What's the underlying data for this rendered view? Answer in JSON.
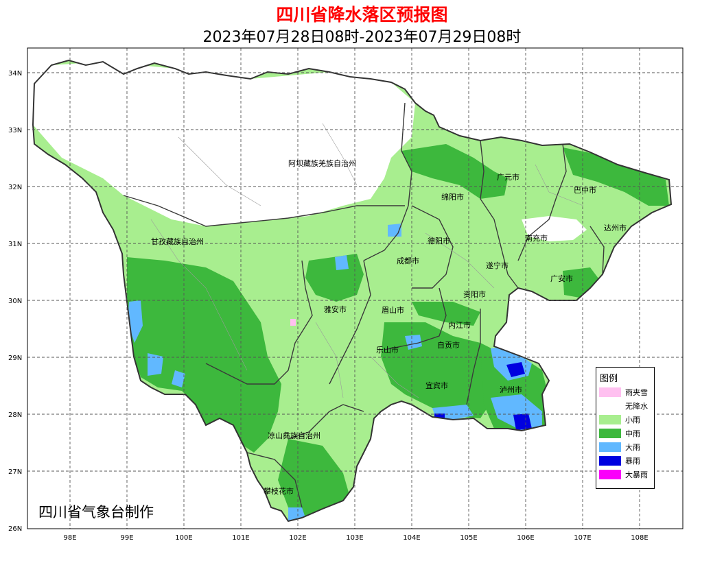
{
  "title": "四川省降水落区预报图",
  "subtitle": "2023年07月28日08时-2023年07月29日08时",
  "credit": "四川省气象台制作",
  "axes": {
    "lat_ticks": [
      "34N",
      "33N",
      "32N",
      "31N",
      "30N",
      "29N",
      "28N",
      "27N",
      "26N"
    ],
    "lon_ticks": [
      "98E",
      "99E",
      "100E",
      "101E",
      "102E",
      "103E",
      "104E",
      "105E",
      "106E",
      "107E",
      "108E"
    ]
  },
  "legend": {
    "title": "图例",
    "items": [
      {
        "label": "雨夹雪",
        "color": "#ffc0f0"
      },
      {
        "label": "无降水",
        "color": "#ffffff"
      },
      {
        "label": "小雨",
        "color": "#a8ee8f"
      },
      {
        "label": "中雨",
        "color": "#3db83d"
      },
      {
        "label": "大雨",
        "color": "#61b8ff"
      },
      {
        "label": "暴雨",
        "color": "#0000e0"
      },
      {
        "label": "大暴雨",
        "color": "#fa00fa"
      }
    ]
  },
  "cities": [
    {
      "name": "阿坝藏族羌族自治州"
    },
    {
      "name": "甘孜藏族自治州"
    },
    {
      "name": "广元市"
    },
    {
      "name": "巴中市"
    },
    {
      "name": "绵阳市"
    },
    {
      "name": "达州市"
    },
    {
      "name": "德阳市"
    },
    {
      "name": "南充市"
    },
    {
      "name": "成都市"
    },
    {
      "name": "遂宁市"
    },
    {
      "name": "广安市"
    },
    {
      "name": "资阳市"
    },
    {
      "name": "雅安市"
    },
    {
      "name": "眉山市"
    },
    {
      "name": "内江市"
    },
    {
      "name": "乐山市"
    },
    {
      "name": "自贡市"
    },
    {
      "name": "宜宾市"
    },
    {
      "name": "泸州市"
    },
    {
      "name": "凉山彝族自治州"
    },
    {
      "name": "攀枝花市"
    }
  ]
}
